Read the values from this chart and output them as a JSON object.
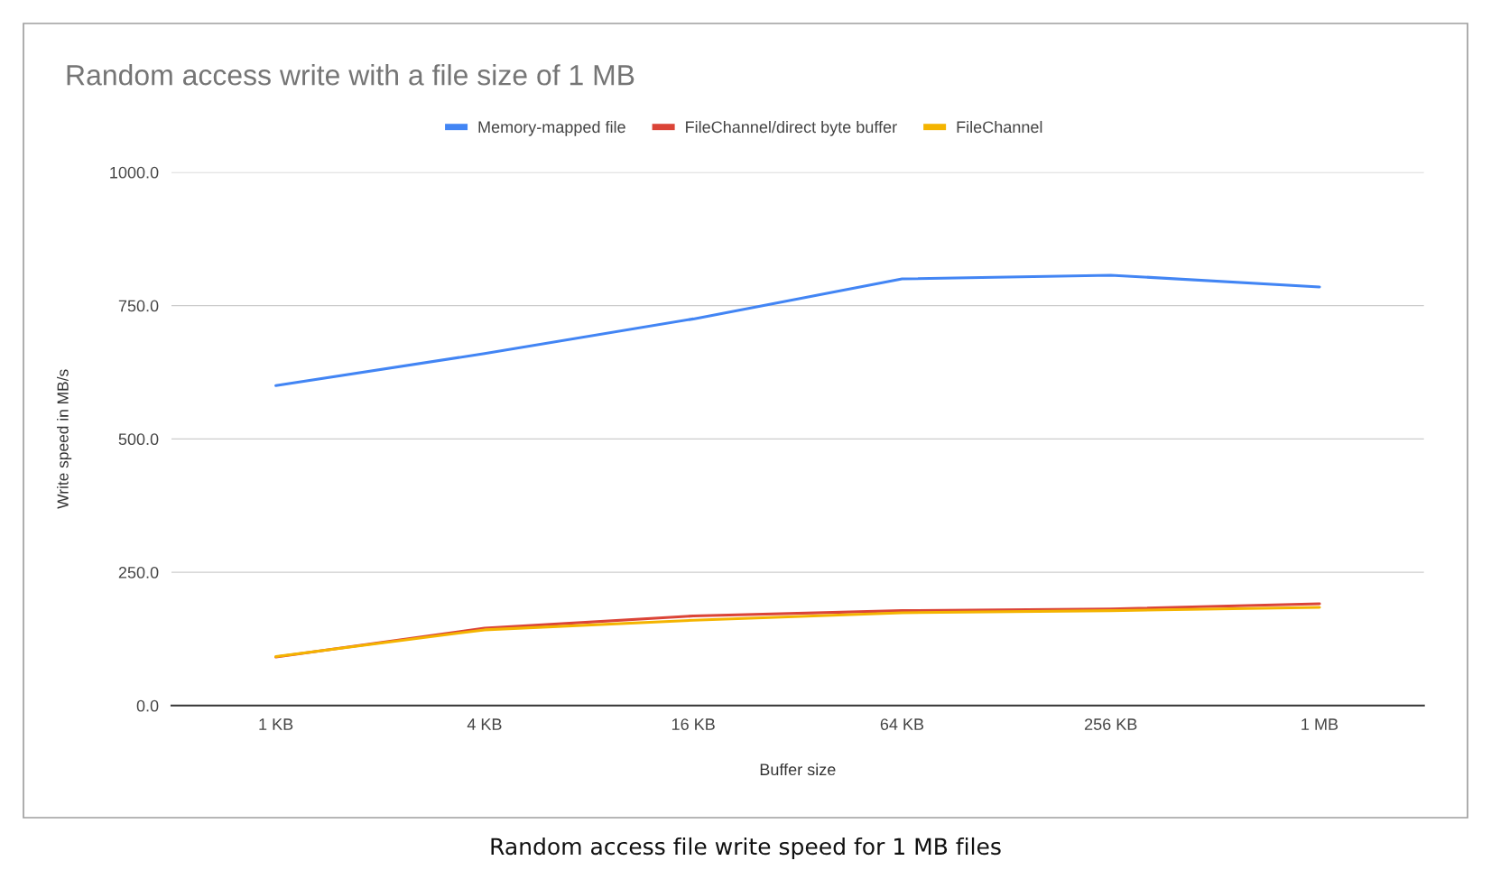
{
  "chart_data": {
    "type": "line",
    "title": "Random access write with a file size of 1 MB",
    "xlabel": "Buffer size",
    "ylabel": "Write speed in MB/s",
    "categories": [
      "1 KB",
      "4 KB",
      "16 KB",
      "64 KB",
      "256 KB",
      "1 MB"
    ],
    "series": [
      {
        "name": "Memory-mapped file",
        "color": "#4285f4",
        "values": [
          600,
          660,
          725,
          800,
          807,
          785
        ]
      },
      {
        "name": "FileChannel/direct byte buffer",
        "color": "#db4437",
        "values": [
          91,
          145,
          168,
          178,
          181,
          191
        ]
      },
      {
        "name": "FileChannel",
        "color": "#f4b400",
        "values": [
          92,
          142,
          160,
          174,
          178,
          184
        ]
      }
    ],
    "ylim": [
      0,
      1000
    ],
    "yticks": [
      {
        "value": 0,
        "label": "0.0"
      },
      {
        "value": 250,
        "label": "250.0"
      },
      {
        "value": 500,
        "label": "500.0"
      },
      {
        "value": 750,
        "label": "750.0"
      },
      {
        "value": 1000,
        "label": "1000.0"
      }
    ],
    "grid": "y",
    "legend": "top",
    "annotations": [
      "Random access file write speed for 1 MB files"
    ]
  }
}
